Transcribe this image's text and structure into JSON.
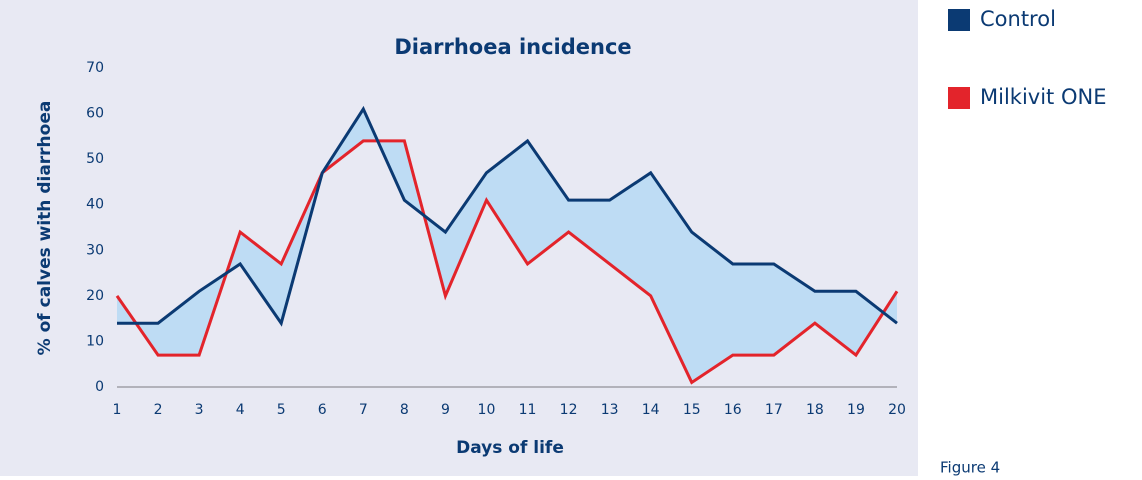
{
  "chart_data": {
    "type": "line",
    "title": "Diarrhoea incidence",
    "x_label": "Days of life",
    "y_label": "% of calves with diarrhoea",
    "caption": "Figure 4",
    "categories": [
      "1",
      "2",
      "3",
      "4",
      "5",
      "6",
      "7",
      "8",
      "9",
      "10",
      "11",
      "12",
      "13",
      "14",
      "15",
      "16",
      "17",
      "18",
      "19",
      "20"
    ],
    "series": [
      {
        "name": "Control",
        "color": "#0b3a73",
        "values": [
          14,
          14,
          21,
          27,
          14,
          47,
          61,
          41,
          34,
          47,
          54,
          41,
          41,
          47,
          34,
          27,
          27,
          21,
          21,
          14
        ]
      },
      {
        "name": "Milkivit ONE",
        "color": "#e3242b",
        "values": [
          20,
          7,
          7,
          34,
          27,
          47,
          54,
          54,
          20,
          41,
          27,
          34,
          27,
          20,
          1,
          7,
          7,
          14,
          7,
          21
        ]
      }
    ],
    "fill_between": true,
    "fill_color": "#bedcf4",
    "ylim": [
      0,
      70
    ],
    "yticks": [
      0,
      10,
      20,
      30,
      40,
      50,
      60,
      70
    ],
    "legend": "right"
  }
}
